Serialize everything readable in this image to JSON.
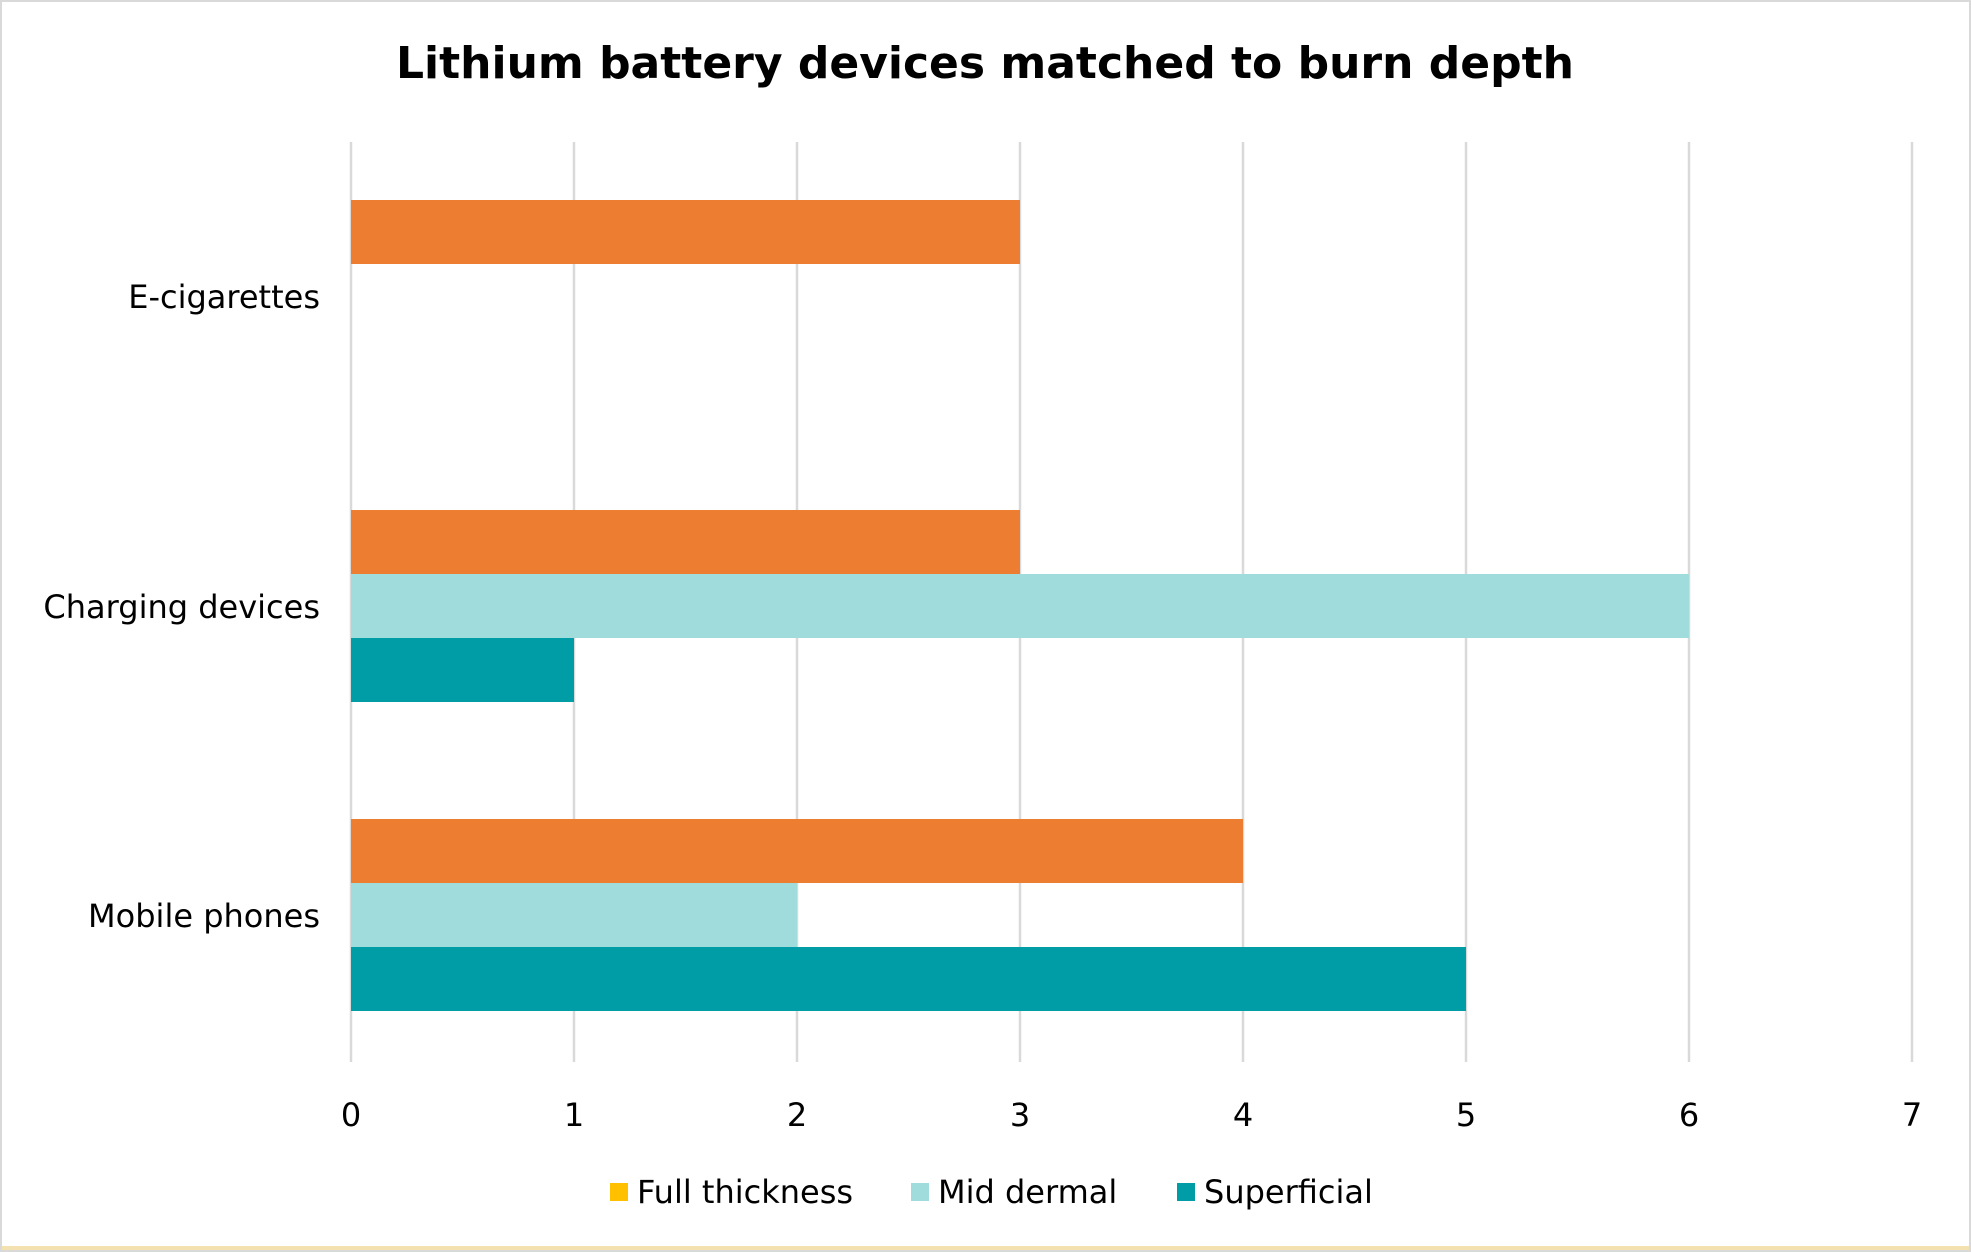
{
  "chart_data": {
    "type": "bar",
    "orientation": "horizontal",
    "title": "Lithium battery devices matched to burn depth",
    "categories": [
      "E-cigarettes",
      "Charging devices",
      "Mobile phones"
    ],
    "series": [
      {
        "name": "Full thickness",
        "color": "#ed7d31",
        "values": [
          3,
          3,
          4
        ]
      },
      {
        "name": "Mid dermal",
        "color": "#9fdcdb",
        "values": [
          0,
          6,
          2
        ]
      },
      {
        "name": "Superficial",
        "color": "#019da7",
        "values": [
          0,
          1,
          5
        ]
      }
    ],
    "legend_swatch_colors": [
      "#ffc000",
      "#9fdcdb",
      "#019da7"
    ],
    "xlim": [
      0,
      7
    ],
    "x_ticks": [
      "0",
      "1",
      "2",
      "3",
      "4",
      "5",
      "6",
      "7"
    ],
    "grid": true,
    "legend_position": "bottom"
  }
}
